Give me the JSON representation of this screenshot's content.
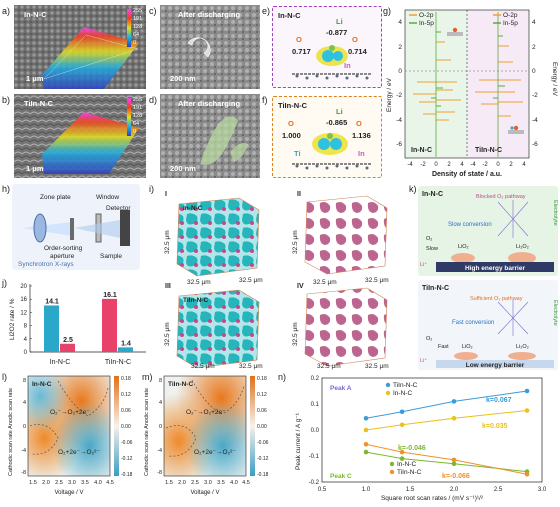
{
  "panel_labels": {
    "a": "a)",
    "b": "b)",
    "c": "c)",
    "d": "d)",
    "e": "e)",
    "f": "f)",
    "g": "g)",
    "h": "h)",
    "i": "i)",
    "j": "j)",
    "k": "k)",
    "l": "l)",
    "m": "m)",
    "n": "n)"
  },
  "sem": {
    "a_title": "In-N-C",
    "a_scale": "1 μm",
    "b_title": "TiIn-N-C",
    "b_scale": "1 μm",
    "c_title": "After discharging",
    "c_scale": "200 nm",
    "d_title": "After discharging",
    "d_scale": "200 nm",
    "colorbar": [
      "255",
      "191",
      "128",
      "64",
      "0"
    ]
  },
  "charge_e": {
    "title": "In-N-C",
    "li": "Li",
    "li_val": "-0.877",
    "o_left": "O",
    "o_left_val": "0.717",
    "o_right": "O",
    "o_right_val": "0.714",
    "metal": "In"
  },
  "charge_f": {
    "title": "TiIn-N-C",
    "li": "Li",
    "li_val": "-0.865",
    "o_left": "O",
    "o_left_val": "1.000",
    "o_right": "O",
    "o_right_val": "1.136",
    "ti": "Ti",
    "in": "In"
  },
  "dos": {
    "ylabel_left": "Energy / eV",
    "ylabel_right": "Energy / eV",
    "xlabel": "Density of state / a.u.",
    "legend_left": [
      "O-2p",
      "In-5p"
    ],
    "legend_right": [
      "O-2p",
      "In-5p"
    ],
    "label_left": "In-N-C",
    "label_right": "TiIn-N-C",
    "yticks": [
      "4",
      "2",
      "0",
      "-2",
      "-4",
      "-6"
    ],
    "xticks_left": [
      "-4",
      "-2",
      "0",
      "2",
      "4"
    ],
    "xticks_right": [
      "-4",
      "-2",
      "0",
      "2",
      "4"
    ],
    "colors": {
      "o2p": "#f0a030",
      "in5p": "#5aaa3c"
    }
  },
  "xray": {
    "zone_plate": "Zone plate",
    "window": "Window",
    "detector": "Detector",
    "aperture": "Order-sorting\naperture",
    "source": "Synchrotron X-rays",
    "sample": "Sample"
  },
  "tomo": {
    "I": "I",
    "II": "II",
    "III": "III",
    "IV": "IV",
    "I_title": "In-N-C",
    "III_title": "TiIn-N-C",
    "dim": "32.5 μm"
  },
  "chart_data": [
    {
      "type": "bar",
      "ylabel": "Li2O2 rate / %",
      "categories": [
        "In-N-C",
        "TiIn-N-C"
      ],
      "series": [
        {
          "values": [
            14.1,
            16.1
          ],
          "labels": [
            "14.1",
            "16.1"
          ]
        },
        {
          "values": [
            2.5,
            1.4
          ],
          "labels": [
            "2.5",
            "1.4"
          ]
        }
      ],
      "yticks": [
        "0",
        "4",
        "8",
        "12",
        "16",
        "20"
      ],
      "ylim": [
        0,
        20
      ],
      "colors": [
        "#2aa7c9",
        "#e8426b",
        "#e8426b",
        "#2aa7c9"
      ]
    },
    {
      "type": "heatmap",
      "panel": "l",
      "title": "In-N-C",
      "xlabel": "Voltage / V",
      "ylabel": "Cathodic scan rate Anodic scan rate",
      "xticks": [
        "1.5",
        "2.0",
        "2.5",
        "3.0",
        "3.5",
        "4.0",
        "4.5"
      ],
      "yticks": [
        "8",
        "4",
        "0",
        "-4",
        "-8"
      ],
      "colorbar": [
        "0.18",
        "0.12",
        "0.06",
        "0.00",
        "-0.06",
        "-0.12",
        "-0.18"
      ],
      "annotations": [
        "O₂⁻→O₂+2e⁻",
        "O₂+2e⁻→O₂²⁻"
      ]
    },
    {
      "type": "heatmap",
      "panel": "m",
      "title": "TiIn-N-C",
      "xlabel": "Voltage / V",
      "ylabel": "Cathodic scan rate Anodic scan rate",
      "xticks": [
        "1.5",
        "2.0",
        "2.5",
        "3.0",
        "3.5",
        "4.0",
        "4.5"
      ],
      "yticks": [
        "8",
        "4",
        "0",
        "-4",
        "-8"
      ],
      "colorbar": [
        "0.18",
        "0.12",
        "0.06",
        "0.00",
        "-0.06",
        "-0.12",
        "-0.18"
      ],
      "annotations": [
        "O₂⁻→O₂+2e⁻",
        "O₂+2e⁻→O₂²⁻"
      ]
    },
    {
      "type": "scatter",
      "panel": "n",
      "xlabel": "Square root scan rates / (mV s⁻¹)¹/²",
      "ylabel": "Peak current / A g⁻¹",
      "peak_a": "Peak A",
      "peak_c": "Peak C",
      "xticks": [
        "0.5",
        "1.0",
        "1.5",
        "2.0",
        "2.5",
        "3.0"
      ],
      "yticks": [
        "0.2",
        "0.1",
        "0.0",
        "-0.1",
        "-0.2"
      ],
      "xlim": [
        0.5,
        3.0
      ],
      "ylim": [
        -0.2,
        0.2
      ],
      "x": [
        1.0,
        1.41,
        2.0,
        2.83
      ],
      "series": [
        {
          "name": "TiIn-N-C",
          "color": "#3c9bd6",
          "values": [
            0.045,
            0.07,
            0.11,
            0.15
          ],
          "k": "k=0.067"
        },
        {
          "name": "In-N-C",
          "color": "#e8c21a",
          "values": [
            0.0,
            0.02,
            0.045,
            0.075
          ],
          "k": "k=0.035"
        },
        {
          "name": "In-N-C",
          "color": "#7ab82e",
          "values": [
            -0.085,
            -0.11,
            -0.13,
            -0.16
          ],
          "k": "k=-0.046"
        },
        {
          "name": "TiIn-N-C",
          "color": "#f0902a",
          "values": [
            -0.055,
            -0.085,
            -0.115,
            -0.17
          ],
          "k": "k=-0.066"
        }
      ],
      "legend_top": [
        "TiIn-N-C",
        "In-N-C"
      ],
      "legend_bottom": [
        "In-N-C",
        "TiIn-N-C"
      ]
    }
  ],
  "mech": {
    "top_title": "In-N-C",
    "top_path": "Blocked O₂ pathway",
    "top_conv": "Slow conversion",
    "top_slow": "Slow",
    "top_barrier": "High energy barrier",
    "top_electrolyte": "Electrolyte",
    "bot_title": "TiIn-N-C",
    "bot_path": "Sufficient O₂ pathway",
    "bot_conv": "Fast conversion",
    "bot_fast": "Fast",
    "bot_barrier": "Low energy barrier",
    "bot_electrolyte": "Electrolyte",
    "o2": "O₂",
    "lio2": "LiO₂",
    "li2o2": "Li₂O₂",
    "li": "Li⁺"
  }
}
